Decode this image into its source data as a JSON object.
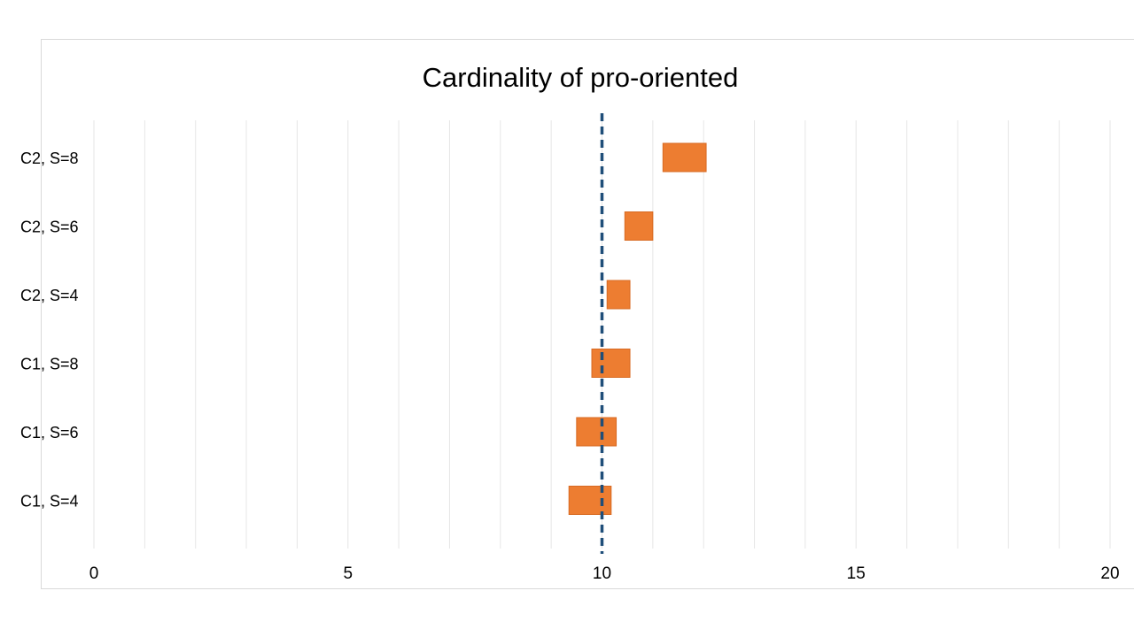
{
  "chart_data": {
    "type": "bar",
    "subtype": "floating-range",
    "title": "Cardinality of pro-oriented",
    "xlabel": "",
    "ylabel": "",
    "xlim": [
      0,
      20
    ],
    "x_ticks": [
      "0",
      "5",
      "10",
      "15",
      "20"
    ],
    "minor_gridline_step": 1,
    "grid": true,
    "legend": "none",
    "categories": [
      "C2, S=8",
      "C2, S=6",
      "C2, S=4",
      "C1, S=8",
      "C1, S=6",
      "C1, S=4"
    ],
    "ranges": [
      [
        11.2,
        12.05
      ],
      [
        10.45,
        11.0
      ],
      [
        10.1,
        10.55
      ],
      [
        9.8,
        10.55
      ],
      [
        9.5,
        10.28
      ],
      [
        9.35,
        10.18
      ]
    ],
    "reference_line": {
      "x": 10,
      "style": "dashed"
    },
    "colors": {
      "bar": "#ed7d31",
      "reference": "#1f4e79",
      "grid": "#e6e6e6"
    }
  }
}
